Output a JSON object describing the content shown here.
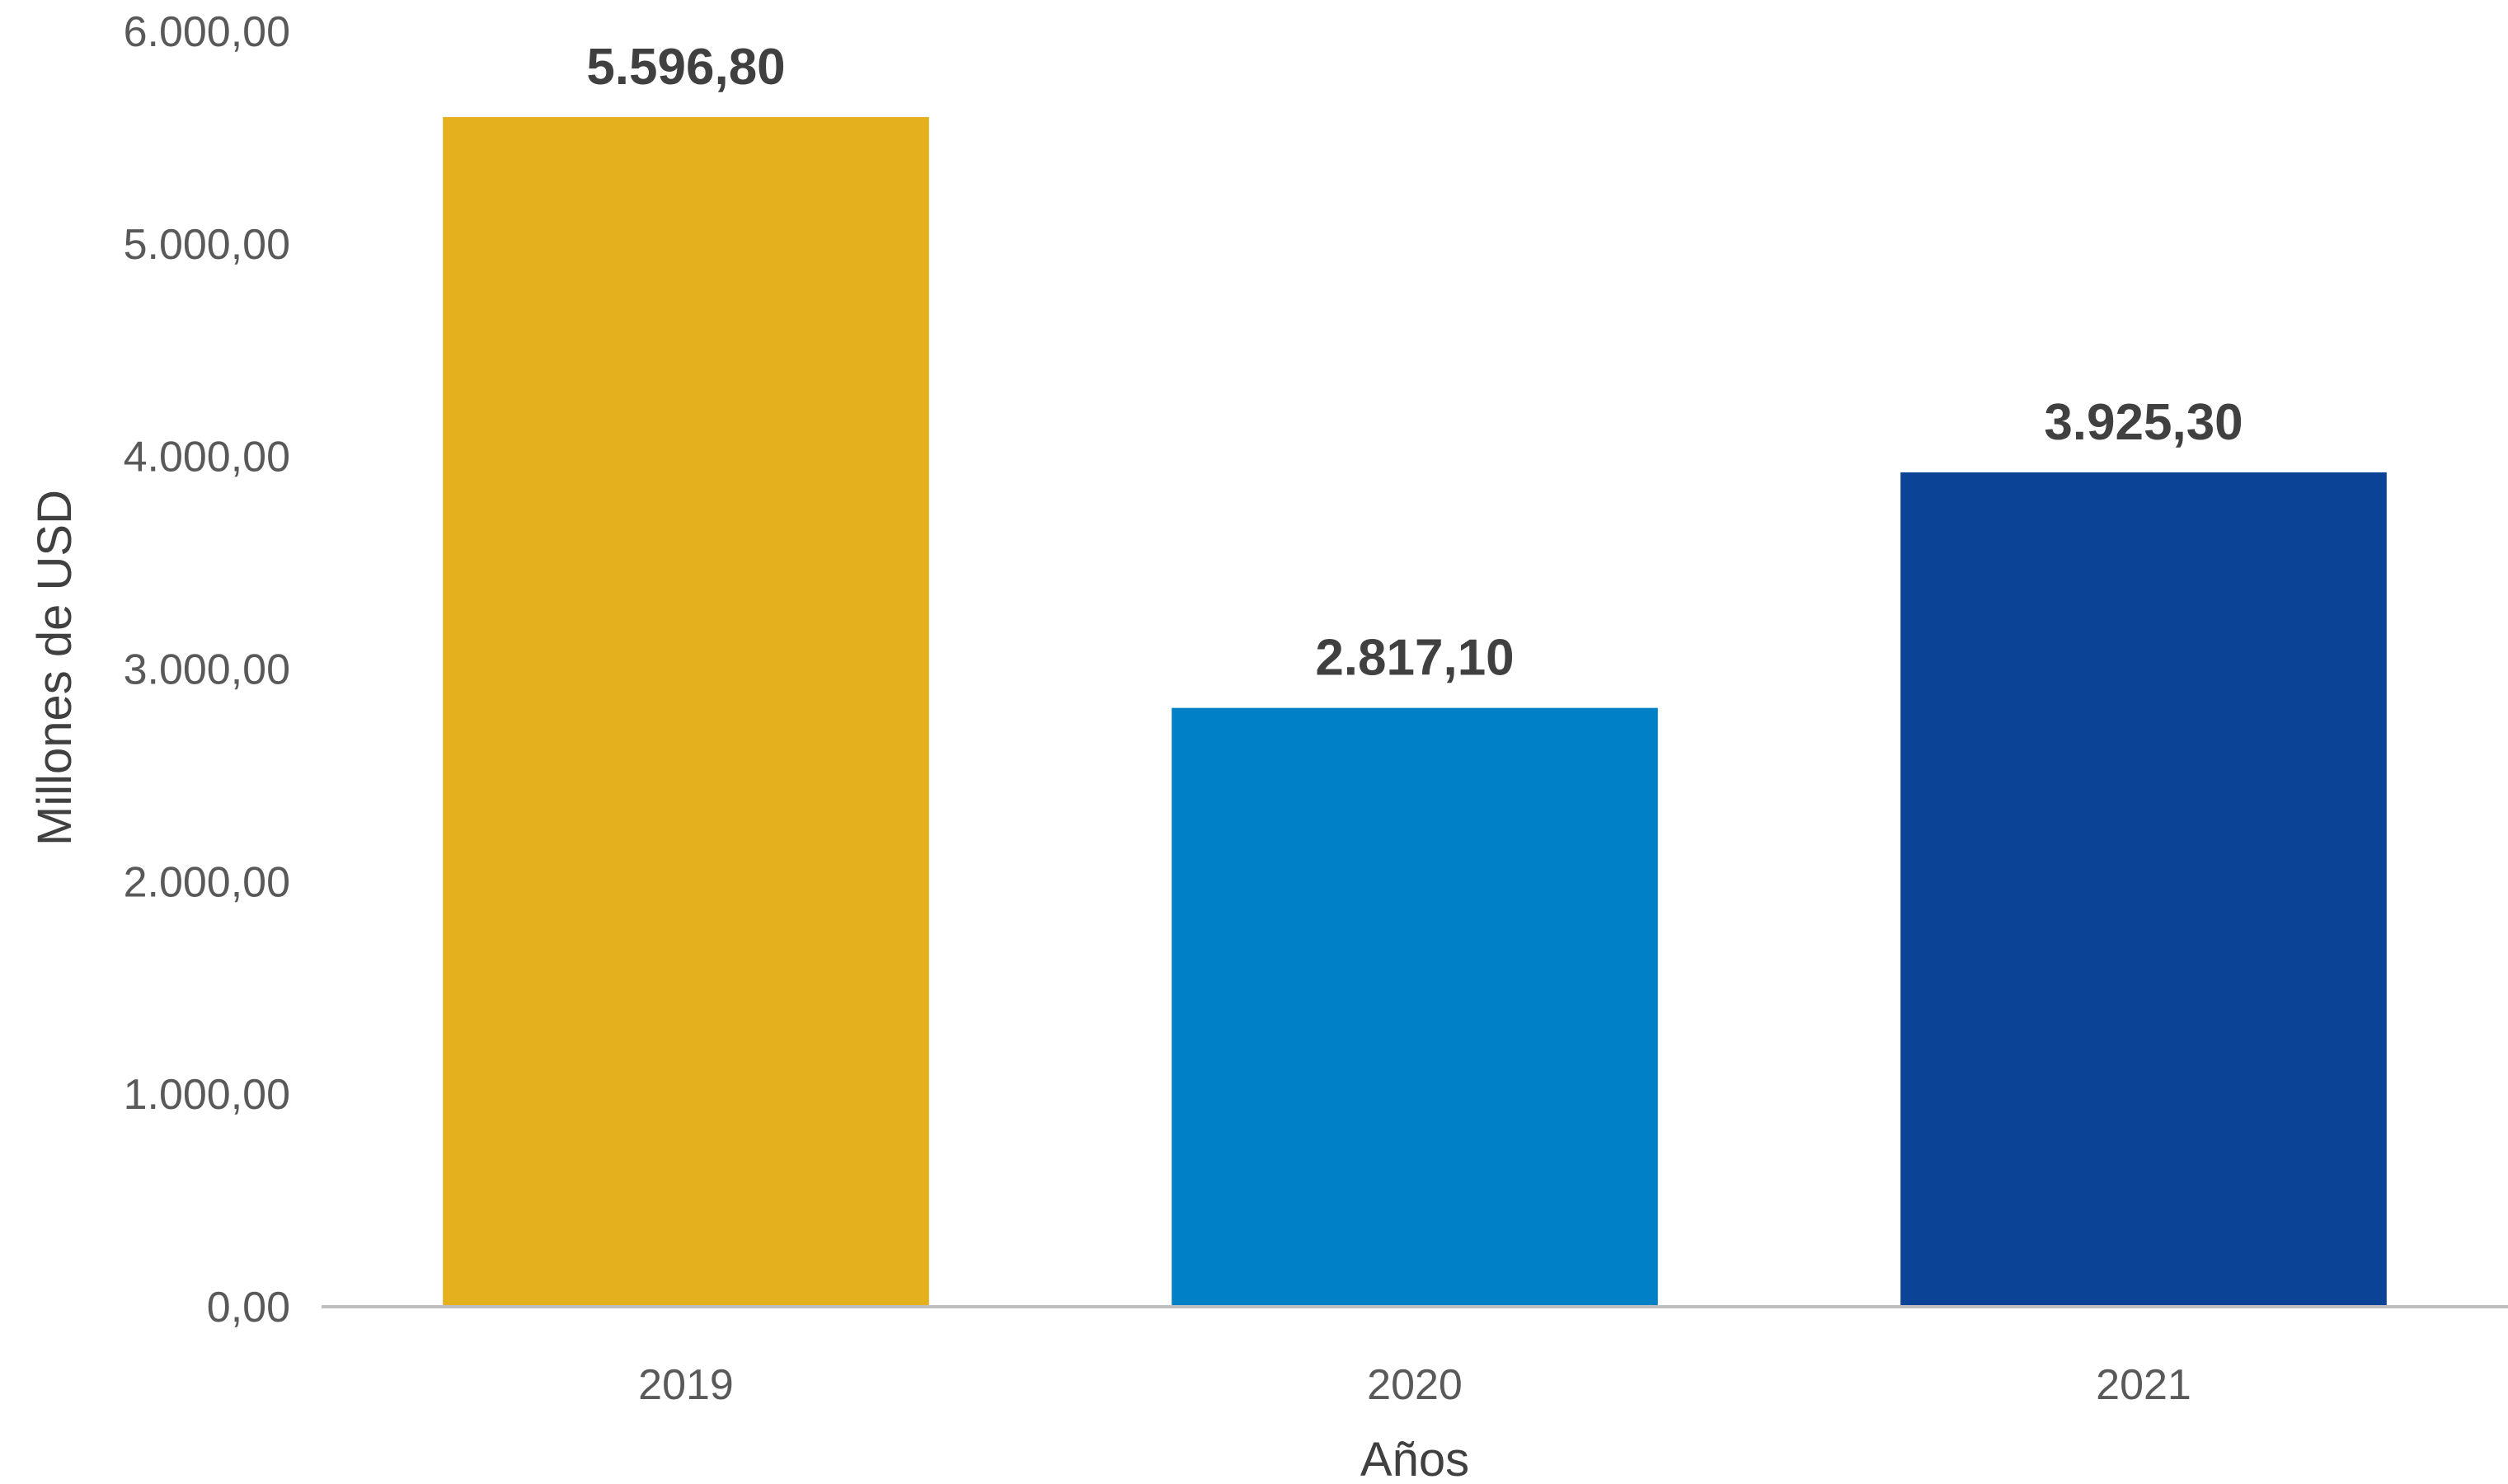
{
  "chart_data": {
    "type": "bar",
    "title": "",
    "xlabel": "Años",
    "ylabel": "Millones de USD",
    "ylim": [
      0,
      6000
    ],
    "yticks": [
      0,
      1000,
      2000,
      3000,
      4000,
      5000,
      6000
    ],
    "ytick_labels": [
      "0,00",
      "1.000,00",
      "2.000,00",
      "3.000,00",
      "4.000,00",
      "5.000,00",
      "6.000,00"
    ],
    "grid": false,
    "legend": "none",
    "categories": [
      "2019",
      "2020",
      "2021"
    ],
    "values": [
      5596.8,
      2817.1,
      3925.3
    ],
    "value_labels": [
      "5.596,80",
      "2.817,10",
      "3.925,30"
    ],
    "colors": [
      "#E5B01D",
      "#0080C6",
      "#0B4397"
    ]
  },
  "colors": {
    "axis_line": "#BFBFBF",
    "tick_text": "#595959",
    "label_text": "#404040"
  }
}
